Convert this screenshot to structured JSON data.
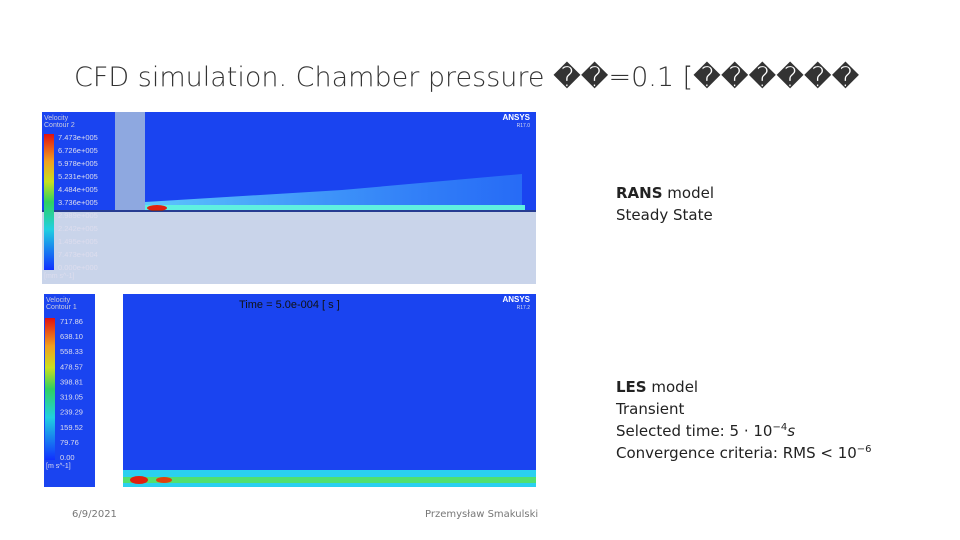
{
  "header": {
    "title": "CFD simulation. Chamber pressure ��=0.1 [������"
  },
  "panels": [
    {
      "model": "RANS",
      "model_suffix": " model",
      "lines": [
        "Steady State"
      ],
      "image": {
        "legend_title": [
          "Velocity",
          "Contour 2"
        ],
        "legend_values": [
          "7.473e+005",
          "6.726e+005",
          "5.978e+005",
          "5.231e+005",
          "4.484e+005",
          "3.736e+005",
          "2.989e+005",
          "2.242e+005",
          "1.495e+005",
          "7.473e+004",
          "0.000e+000"
        ],
        "unit": "[mm s^-1]",
        "brand": "ANSYS",
        "version": "R17.0"
      }
    },
    {
      "model": "LES",
      "model_suffix": " model",
      "lines": [
        "Transient"
      ],
      "math": [
        {
          "text": "Selected time: 5 · 10",
          "sup": "−4",
          "tail": "s"
        },
        {
          "text": "Convergence criteria: RMS < 10",
          "sup": "−6",
          "tail": ""
        }
      ],
      "image": {
        "caption": "Time = 5.0e-004 [ s ]",
        "legend_title": [
          "Velocity",
          "Contour 1"
        ],
        "legend_values": [
          "717.86",
          "638.10",
          "558.33",
          "478.57",
          "398.81",
          "319.05",
          "239.29",
          "159.52",
          "79.76",
          "0.00"
        ],
        "unit": "[m s^-1]",
        "brand": "ANSYS",
        "version": "R17.2"
      }
    }
  ],
  "footer": {
    "date": "6/9/2021",
    "author": "Przemysław Smakulski"
  }
}
